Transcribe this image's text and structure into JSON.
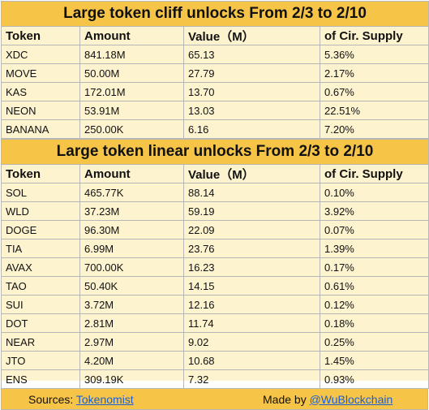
{
  "cliff": {
    "title": "Large token cliff unlocks From 2/3 to 2/10",
    "headers": [
      "Token",
      "Amount",
      "Value（M）",
      "of Cir. Supply"
    ],
    "rows": [
      [
        "XDC",
        "841.18M",
        "65.13",
        "5.36%"
      ],
      [
        "MOVE",
        "50.00M",
        "27.79",
        "2.17%"
      ],
      [
        "KAS",
        "172.01M",
        "13.70",
        "0.67%"
      ],
      [
        "NEON",
        "53.91M",
        "13.03",
        "22.51%"
      ],
      [
        "BANANA",
        "250.00K",
        "6.16",
        "7.20%"
      ]
    ]
  },
  "linear": {
    "title": "Large token linear unlocks From  2/3 to 2/10",
    "headers": [
      "Token",
      "Amount",
      "Value（M）",
      "of Cir. Supply"
    ],
    "rows": [
      [
        "SOL",
        "465.77K",
        "88.14",
        "0.10%"
      ],
      [
        "WLD",
        "37.23M",
        "59.19",
        "3.92%"
      ],
      [
        "DOGE",
        "96.30M",
        "22.09",
        "0.07%"
      ],
      [
        "TIA",
        "6.99M",
        "23.76",
        "1.39%"
      ],
      [
        "AVAX",
        "700.00K",
        "16.23",
        "0.17%"
      ],
      [
        "TAO",
        "50.40K",
        "14.15",
        "0.61%"
      ],
      [
        "SUI",
        "3.72M",
        "12.16",
        "0.12%"
      ],
      [
        "DOT",
        "2.81M",
        "11.74",
        "0.18%"
      ],
      [
        "NEAR",
        "2.97M",
        "9.02",
        "0.25%"
      ],
      [
        "JTO",
        "4.20M",
        "10.68",
        "1.45%"
      ],
      [
        "ENS",
        "309.19K",
        "7.32",
        "0.93%"
      ]
    ]
  },
  "footer": {
    "sources_label": "Sources:",
    "sources_link": "Tokenomist",
    "made_label": "Made by",
    "made_link": "@WuBlockchain"
  }
}
